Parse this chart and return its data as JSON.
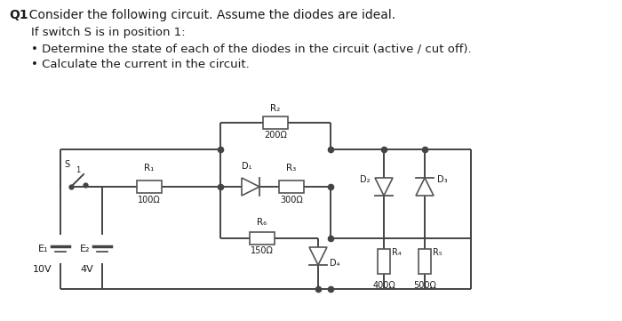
{
  "title_bold": "Q1",
  "title_text": ". Consider the following circuit. Assume the diodes are ideal.",
  "subtitle": "If switch S is in position 1:",
  "bullet1": "Determine the state of each of the diodes in the circuit (active / cut off).",
  "bullet2": "Calculate the current in the circuit.",
  "bg_color": "#ffffff",
  "text_color": "#1a1a1a",
  "wire_color": "#444444",
  "figsize": [
    7.0,
    3.61
  ],
  "dpi": 100,
  "circuit": {
    "xL": 68,
    "xE1": 68,
    "xE2": 118,
    "xSwL": 68,
    "xSwR": 88,
    "xR1c": 178,
    "xJ1": 248,
    "xR2c": 310,
    "xJ2": 372,
    "xD1c": 283,
    "xR3c": 330,
    "xJ3": 450,
    "xD2c": 468,
    "xD3c": 510,
    "xR4c": 468,
    "xR5c": 510,
    "xCorR": 550,
    "xR6c": 310,
    "xD4c": 360,
    "yTop": 158,
    "yByp": 130,
    "yMid": 200,
    "yLow": 265,
    "yBot": 310,
    "ySrc": 275
  }
}
